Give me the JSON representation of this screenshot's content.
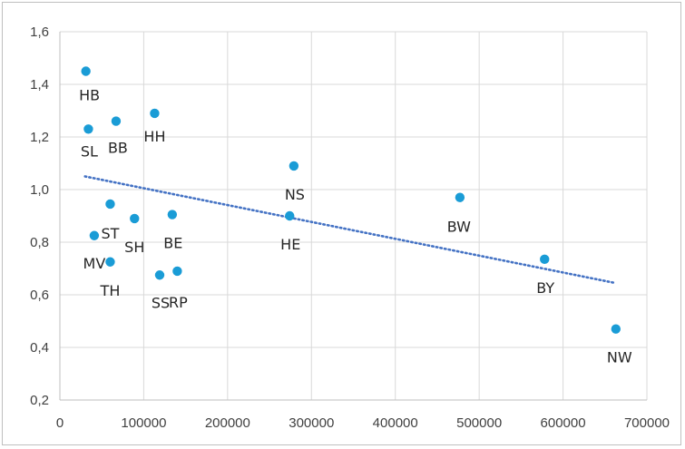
{
  "chart_data": {
    "type": "scatter",
    "title": "",
    "xlabel": "",
    "ylabel": "",
    "xlim": [
      0,
      700000
    ],
    "ylim": [
      0.2,
      1.6
    ],
    "x_ticks": [
      0,
      100000,
      200000,
      300000,
      400000,
      500000,
      600000,
      700000
    ],
    "x_tick_labels": [
      "0",
      "100000",
      "200000",
      "300000",
      "400000",
      "500000",
      "600000",
      "700000"
    ],
    "y_ticks": [
      0.2,
      0.4,
      0.6,
      0.8,
      1.0,
      1.2,
      1.4,
      1.6
    ],
    "y_tick_labels": [
      "0,2",
      "0,4",
      "0,6",
      "0,8",
      "1,0",
      "1,2",
      "1,4",
      "1,6"
    ],
    "grid": true,
    "legend": "none",
    "marker_color": "#1a9cd6",
    "trendline": {
      "style": "dotted",
      "color": "#4472c4",
      "start": {
        "x": 30000,
        "y": 1.05
      },
      "end": {
        "x": 662000,
        "y": 0.645
      }
    },
    "points": [
      {
        "label": "HB",
        "x": 31000,
        "y": 1.45,
        "label_pos": "below"
      },
      {
        "label": "SL",
        "x": 34000,
        "y": 1.23,
        "label_pos": "below"
      },
      {
        "label": "BB",
        "x": 67000,
        "y": 1.26,
        "label_pos": "below"
      },
      {
        "label": "HH",
        "x": 113000,
        "y": 1.29,
        "label_pos": "below"
      },
      {
        "label": "NS",
        "x": 279000,
        "y": 1.09,
        "label_pos": "below"
      },
      {
        "label": "BW",
        "x": 477000,
        "y": 0.97,
        "label_pos": "below"
      },
      {
        "label": "ST",
        "x": 60000,
        "y": 0.945,
        "label_pos": "below"
      },
      {
        "label": "SH",
        "x": 89000,
        "y": 0.89,
        "label_pos": "below"
      },
      {
        "label": "BE",
        "x": 134000,
        "y": 0.905,
        "label_pos": "below"
      },
      {
        "label": "HE",
        "x": 274000,
        "y": 0.9,
        "label_pos": "below"
      },
      {
        "label": "MV",
        "x": 41000,
        "y": 0.825,
        "label_pos": "below"
      },
      {
        "label": "TH",
        "x": 60000,
        "y": 0.725,
        "label_pos": "below"
      },
      {
        "label": "SS",
        "x": 119000,
        "y": 0.675,
        "label_pos": "below"
      },
      {
        "label": "RP",
        "x": 140000,
        "y": 0.69,
        "label_pos": "below"
      },
      {
        "label": "BY",
        "x": 578000,
        "y": 0.735,
        "label_pos": "below"
      },
      {
        "label": "NW",
        "x": 663000,
        "y": 0.47,
        "label_pos": "below"
      }
    ]
  }
}
